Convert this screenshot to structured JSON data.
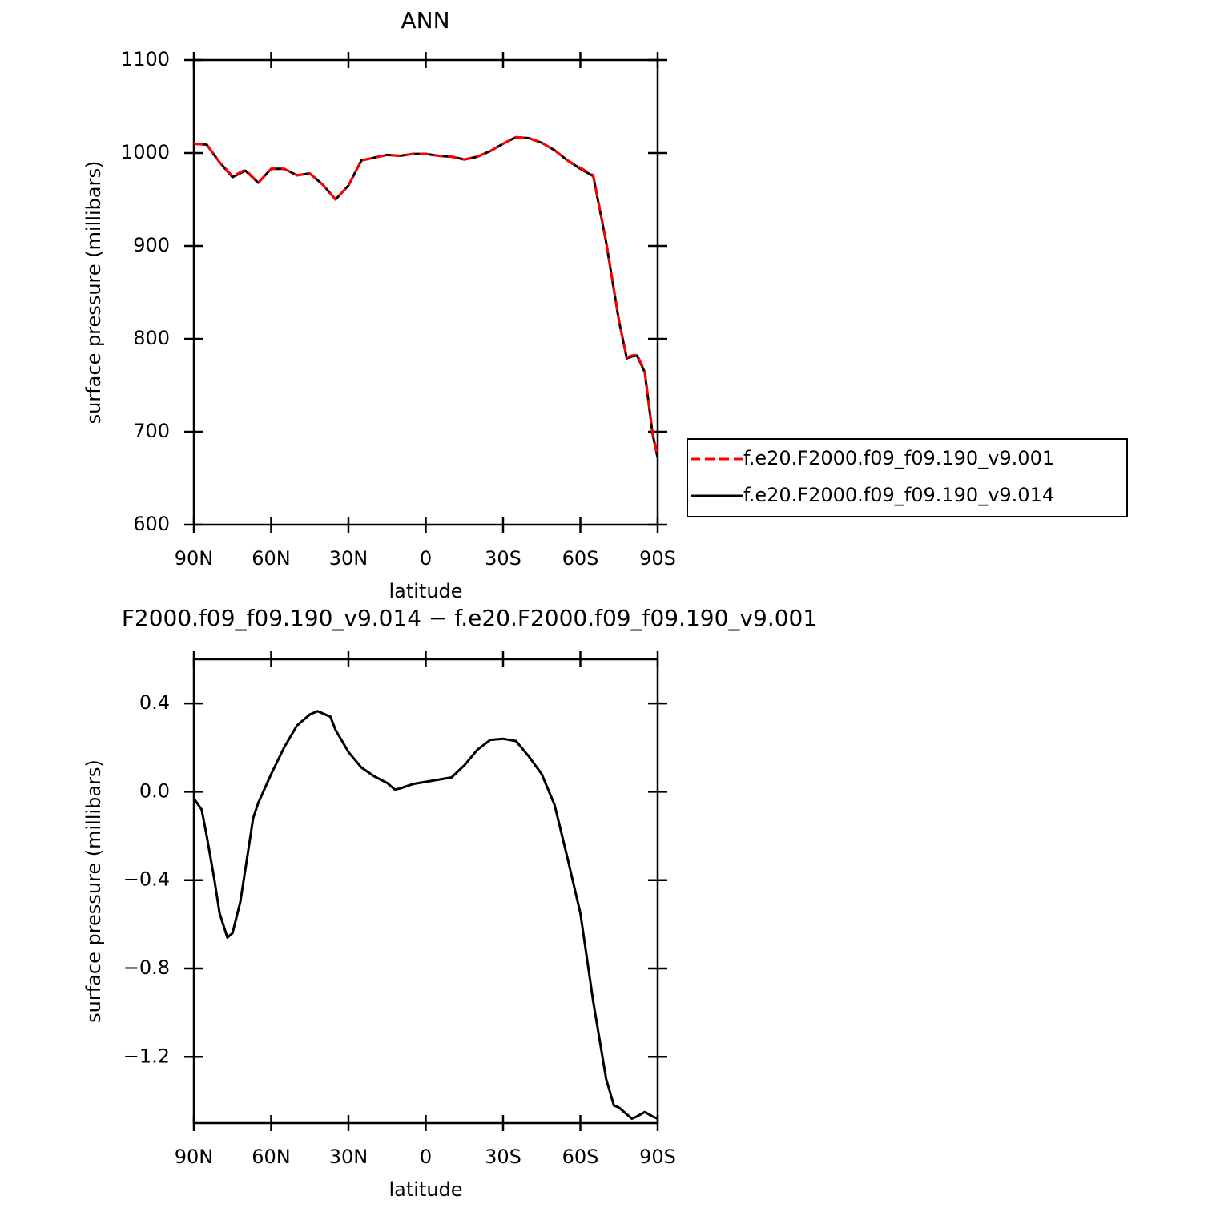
{
  "chart_data": [
    {
      "type": "line",
      "title": "ANN",
      "xlabel": "latitude",
      "ylabel": "surface pressure (millibars)",
      "x": [
        90,
        85,
        80,
        75,
        70,
        65,
        60,
        55,
        50,
        45,
        40,
        35,
        30,
        25,
        20,
        15,
        10,
        5,
        0,
        -5,
        -10,
        -15,
        -20,
        -25,
        -30,
        -35,
        -40,
        -45,
        -50,
        -55,
        -60,
        -65,
        -70,
        -75,
        -78,
        -80,
        -82,
        -85,
        -88,
        -90
      ],
      "xlim": [
        90,
        -90
      ],
      "xticks": [
        {
          "value": 90,
          "label": "90N"
        },
        {
          "value": 60,
          "label": "60N"
        },
        {
          "value": 30,
          "label": "30N"
        },
        0,
        {
          "value": -30,
          "label": "30S"
        },
        {
          "value": -60,
          "label": "60S"
        },
        {
          "value": -90,
          "label": "90S"
        }
      ],
      "ylim": [
        600,
        1100
      ],
      "yticks": [
        600,
        700,
        800,
        900,
        1000,
        1100
      ],
      "legend": "right",
      "series": [
        {
          "name": "f.e20.F2000.f09_f09.190_v9.001",
          "color": "#ff0000",
          "dashed": true,
          "values": [
            1010,
            1009,
            990,
            975,
            982,
            968,
            983,
            983,
            976,
            978,
            966,
            950,
            965,
            992,
            995,
            998,
            997,
            999,
            999,
            997,
            996,
            993,
            996,
            1002,
            1010,
            1017,
            1016,
            1011,
            1003,
            992,
            984,
            976,
            905,
            820,
            780,
            782,
            783,
            765,
            700,
            673
          ]
        },
        {
          "name": "f.e20.F2000.f09_f09.190_v9.014",
          "color": "#000000",
          "dashed": false,
          "values": [
            1010,
            1009,
            990,
            974,
            981,
            968,
            983,
            983,
            976,
            978,
            966,
            950,
            965,
            992,
            995,
            998,
            997,
            999,
            999,
            997,
            996,
            993,
            996,
            1002,
            1010,
            1017,
            1016,
            1011,
            1003,
            992,
            983,
            975,
            904,
            819,
            779,
            781,
            782,
            764,
            698,
            672
          ]
        }
      ]
    },
    {
      "type": "line",
      "title": "F2000.f09_f09.190_v9.014 − f.e20.F2000.f09_f09.190_v9.001",
      "xlabel": "latitude",
      "ylabel": "surface pressure (millibars)",
      "x": [
        90,
        87,
        85,
        82,
        80,
        77,
        75,
        72,
        70,
        67,
        65,
        60,
        55,
        50,
        45,
        42,
        40,
        37,
        35,
        30,
        25,
        20,
        15,
        12,
        10,
        5,
        0,
        -5,
        -10,
        -15,
        -20,
        -25,
        -30,
        -35,
        -40,
        -45,
        -50,
        -55,
        -60,
        -65,
        -70,
        -73,
        -75,
        -78,
        -80,
        -82,
        -85,
        -88,
        -90
      ],
      "xlim": [
        90,
        -90
      ],
      "xticks": [
        {
          "value": 90,
          "label": "90N"
        },
        {
          "value": 60,
          "label": "60N"
        },
        {
          "value": 30,
          "label": "30N"
        },
        0,
        {
          "value": -30,
          "label": "30S"
        },
        {
          "value": -60,
          "label": "60S"
        },
        {
          "value": -90,
          "label": "90S"
        }
      ],
      "ylim": [
        -1.5,
        0.6
      ],
      "yticks": [
        {
          "value": -1.2,
          "label": "−1.2"
        },
        {
          "value": -0.8,
          "label": "−0.8"
        },
        {
          "value": -0.4,
          "label": "−0.4"
        },
        {
          "value": 0,
          "label": "0.0"
        },
        0.4
      ],
      "series": [
        {
          "color": "#000000",
          "dashed": false,
          "values": [
            -0.03,
            -0.08,
            -0.2,
            -0.4,
            -0.55,
            -0.66,
            -0.64,
            -0.5,
            -0.35,
            -0.12,
            -0.05,
            0.08,
            0.2,
            0.3,
            0.35,
            0.365,
            0.355,
            0.34,
            0.28,
            0.18,
            0.11,
            0.07,
            0.04,
            0.01,
            0.015,
            0.035,
            0.045,
            0.055,
            0.065,
            0.12,
            0.19,
            0.235,
            0.24,
            0.23,
            0.16,
            0.08,
            -0.06,
            -0.3,
            -0.55,
            -0.95,
            -1.3,
            -1.42,
            -1.43,
            -1.46,
            -1.48,
            -1.47,
            -1.45,
            -1.47,
            -1.48
          ]
        }
      ]
    }
  ]
}
